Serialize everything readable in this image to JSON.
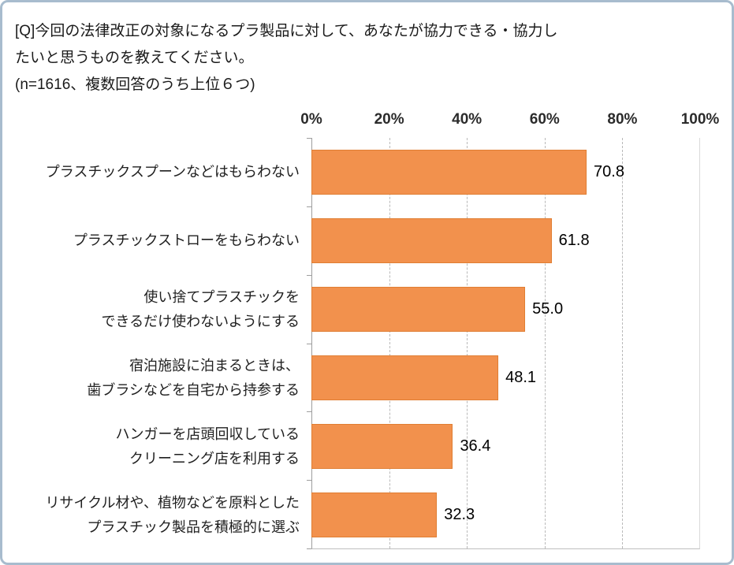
{
  "header": {
    "line1": "[Q]今回の法律改正の対象になるプラ製品に対して、あなたが協力できる・協力し",
    "line2": "たいと思うものを教えてください。",
    "line3": "(n=1616、複数回答のうち上位６つ)"
  },
  "chart_data": {
    "type": "bar",
    "orientation": "horizontal",
    "categories": [
      [
        "プラスチックスプーンなどはもらわない"
      ],
      [
        "プラスチックストローをもらわない"
      ],
      [
        "使い捨てプラスチックを",
        "できるだけ使わないようにする"
      ],
      [
        "宿泊施設に泊まるときは、",
        "歯ブラシなどを自宅から持参する"
      ],
      [
        "ハンガーを店頭回収している",
        "クリーニング店を利用する"
      ],
      [
        "リサイクル材や、植物などを原料とした",
        "プラスチック製品を積極的に選ぶ"
      ]
    ],
    "values": [
      70.8,
      61.8,
      55.0,
      48.1,
      36.4,
      32.3
    ],
    "value_labels": [
      "70.8",
      "61.8",
      "55.0",
      "48.1",
      "36.4",
      "32.3"
    ],
    "x_ticks": [
      "0%",
      "20%",
      "40%",
      "60%",
      "80%",
      "100%"
    ],
    "xlim": [
      0,
      100
    ],
    "grid": "dashed-vertical",
    "legend": "none",
    "bar_color": "#F2914D",
    "bar_border_color": "#E07E33"
  }
}
